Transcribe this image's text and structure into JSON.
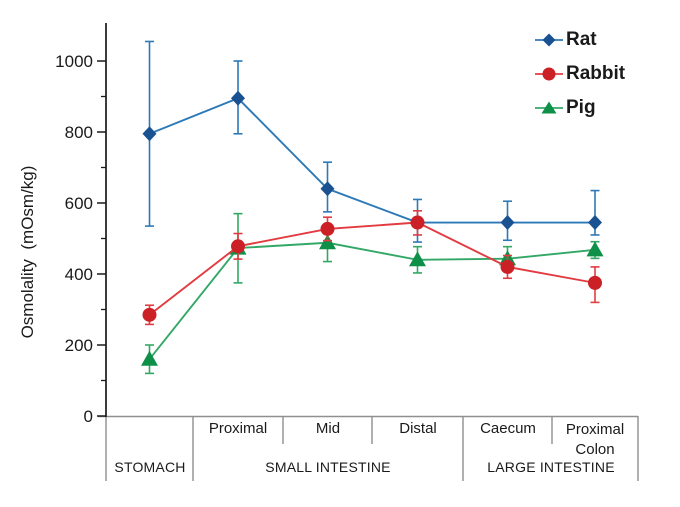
{
  "chart_data": {
    "type": "line",
    "title": "",
    "ylabel": "Osmolality  (mOsm/kg)",
    "xlabel": "",
    "ylim": [
      0,
      1100
    ],
    "yticks": [
      0,
      200,
      400,
      600,
      800,
      1000
    ],
    "y_minor_step": 100,
    "grid": false,
    "legend_position": "top-right",
    "categories": [
      "Stomach",
      "Proximal",
      "Mid",
      "Distal",
      "Caecum",
      "Proximal Colon"
    ],
    "groups": [
      {
        "label": "STOMACH"
      },
      {
        "label": "SMALL INTESTINE"
      },
      {
        "label": "LARGE INTESTINE"
      }
    ],
    "series": [
      {
        "name": "Rat",
        "marker": "diamond",
        "line_color": "#2C79B8",
        "marker_color": "#1A5291",
        "values": [
          795,
          895,
          640,
          545,
          545,
          545
        ],
        "err_low": [
          535,
          795,
          575,
          490,
          495,
          510
        ],
        "err_high": [
          1055,
          1000,
          715,
          610,
          605,
          635
        ]
      },
      {
        "name": "Rabbit",
        "marker": "circle",
        "line_color": "#E23B40",
        "marker_color": "#CC2027",
        "values": [
          285,
          478,
          527,
          545,
          420,
          375
        ],
        "err_low": [
          258,
          442,
          494,
          510,
          388,
          320
        ],
        "err_high": [
          312,
          514,
          560,
          578,
          452,
          420
        ]
      },
      {
        "name": "Pig",
        "marker": "triangle",
        "line_color": "#33A866",
        "marker_color": "#0F9048",
        "values": [
          160,
          473,
          488,
          440,
          443,
          468
        ],
        "err_low": [
          120,
          375,
          435,
          403,
          410,
          444
        ],
        "err_high": [
          200,
          570,
          530,
          477,
          477,
          491
        ]
      }
    ],
    "axis_color": "#1a1a1a",
    "table_line_color": "#8f8f8f"
  }
}
